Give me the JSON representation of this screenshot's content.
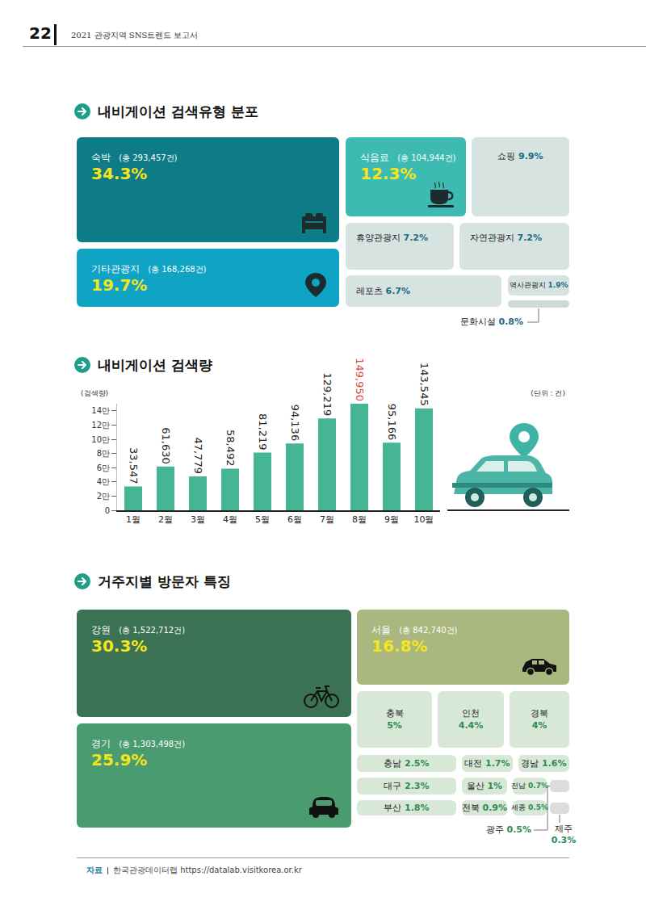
{
  "header": {
    "page": "22",
    "title": "2021 관광지역 SNS트렌드 보고서"
  },
  "search_type": {
    "title": "내비게이션 검색유형 분포",
    "items": [
      {
        "name": "숙박",
        "total": "(총 293,457건)",
        "share": "34.3%"
      },
      {
        "name": "기타관광지",
        "total": "(총 168,268건)",
        "share": "19.7%"
      },
      {
        "name": "식음료",
        "total": "(총 104,944건)",
        "share": "12.3%"
      },
      {
        "name": "쇼핑",
        "share": "9.9%"
      },
      {
        "name": "휴양관광지",
        "share": "7.2%"
      },
      {
        "name": "자연관광지",
        "share": "7.2%"
      },
      {
        "name": "레포츠",
        "share": "6.7%"
      },
      {
        "name": "역사관광지",
        "share": "1.9%"
      },
      {
        "name": "문화시설",
        "share": "0.8%"
      }
    ]
  },
  "chart_data": {
    "type": "bar",
    "title": "내비게이션 검색량",
    "y_label": "(검색량)",
    "unit_note": "(단위 : 건)",
    "categories": [
      "1월",
      "2월",
      "3월",
      "4월",
      "5월",
      "6월",
      "7월",
      "8월",
      "9월",
      "10월"
    ],
    "values": [
      33547,
      61630,
      47779,
      58492,
      81219,
      94136,
      129219,
      149950,
      95166,
      143545
    ],
    "value_labels": [
      "33,547",
      "61,630",
      "47,779",
      "58,492",
      "81,219",
      "94,136",
      "129,219",
      "149,950",
      "95,166",
      "143,545"
    ],
    "color": "#45b596",
    "ylim": [
      0,
      150000
    ],
    "yticks": [
      0,
      {
        "value": 20000,
        "label": "2만"
      },
      {
        "value": 40000,
        "label": "4만"
      },
      {
        "value": 60000,
        "label": "6만"
      },
      {
        "value": 80000,
        "label": "8만"
      },
      {
        "value": 100000,
        "label": "10만"
      },
      {
        "value": 120000,
        "label": "12만"
      },
      {
        "value": 140000,
        "label": "14만"
      }
    ],
    "grid": false,
    "data_labels": true
  },
  "residence": {
    "title": "거주지별 방문자 특징",
    "items": [
      {
        "name": "강원",
        "total": "(총 1,522,712건)",
        "share": "30.3%"
      },
      {
        "name": "경기",
        "total": "(총 1,303,498건)",
        "share": "25.9%"
      },
      {
        "name": "서울",
        "total": "(총 842,740건)",
        "share": "16.8%"
      },
      {
        "name": "충북",
        "share": "5%"
      },
      {
        "name": "인천",
        "share": "4.4%"
      },
      {
        "name": "경북",
        "share": "4%"
      },
      {
        "name": "충남",
        "share": "2.5%"
      },
      {
        "name": "대전",
        "share": "1.7%"
      },
      {
        "name": "경남",
        "share": "1.6%"
      },
      {
        "name": "대구",
        "share": "2.3%"
      },
      {
        "name": "울산",
        "share": "1%"
      },
      {
        "name": "전남",
        "share": "0.7%"
      },
      {
        "name": "부산",
        "share": "1.8%"
      },
      {
        "name": "전북",
        "share": "0.9%"
      },
      {
        "name": "세종",
        "share": "0.5%"
      },
      {
        "name": "광주",
        "share": "0.5%"
      },
      {
        "name": "제주",
        "share": "0.3%"
      }
    ]
  },
  "source": {
    "label": "자료",
    "text": "한국관광데이터랩 https://datalab.visitkorea.or.kr"
  }
}
